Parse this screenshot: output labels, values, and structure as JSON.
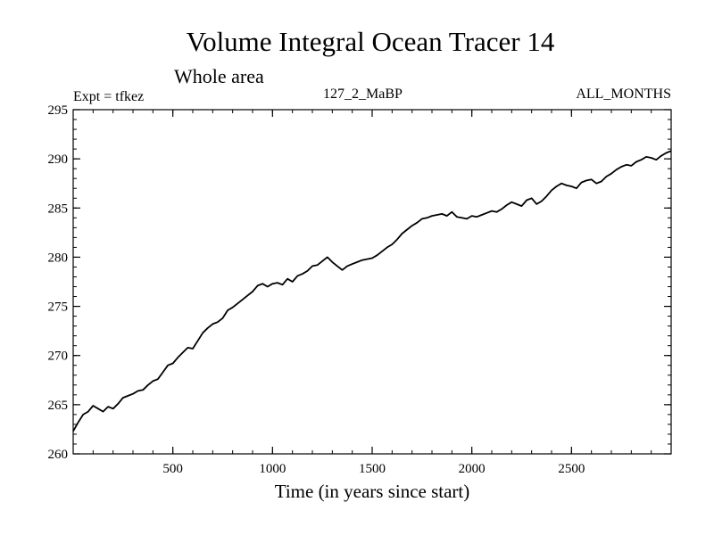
{
  "chart_data": {
    "type": "line",
    "title": "Volume Integral Ocean Tracer 14",
    "subtitle": "Whole area",
    "annotations": {
      "left": "Expt = tfkez",
      "center": "127_2_MaBP",
      "right": "ALL_MONTHS"
    },
    "xlabel": "Time (in years since start)",
    "ylabel": "",
    "xlim": [
      0,
      3000
    ],
    "ylim": [
      260,
      295
    ],
    "x_ticks": [
      500,
      1000,
      1500,
      2000,
      2500
    ],
    "y_ticks": [
      260,
      265,
      270,
      275,
      280,
      285,
      290,
      295
    ],
    "grid": false,
    "line_color": "#000000",
    "series": [
      {
        "x": [
          0,
          25,
          50,
          75,
          100,
          125,
          150,
          175,
          200,
          225,
          250,
          275,
          300,
          325,
          350,
          375,
          400,
          425,
          450,
          475,
          500,
          525,
          550,
          575,
          600,
          625,
          650,
          675,
          700,
          725,
          750,
          775,
          800,
          825,
          850,
          875,
          900,
          925,
          950,
          975,
          1000,
          1025,
          1050,
          1075,
          1100,
          1125,
          1150,
          1175,
          1200,
          1225,
          1250,
          1275,
          1300,
          1325,
          1350,
          1375,
          1400,
          1425,
          1450,
          1475,
          1500,
          1525,
          1550,
          1575,
          1600,
          1625,
          1650,
          1675,
          1700,
          1725,
          1750,
          1775,
          1800,
          1825,
          1850,
          1875,
          1900,
          1925,
          1950,
          1975,
          2000,
          2025,
          2050,
          2075,
          2100,
          2125,
          2150,
          2175,
          2200,
          2225,
          2250,
          2275,
          2300,
          2325,
          2350,
          2375,
          2400,
          2425,
          2450,
          2475,
          2500,
          2525,
          2550,
          2575,
          2600,
          2625,
          2650,
          2675,
          2700,
          2725,
          2750,
          2775,
          2800,
          2825,
          2850,
          2875,
          2900,
          2925,
          2950,
          2975,
          3000
        ],
        "y": [
          262.3,
          263.2,
          264.0,
          264.3,
          264.9,
          264.6,
          264.3,
          264.8,
          264.6,
          265.1,
          265.7,
          265.9,
          266.1,
          266.4,
          266.5,
          267.0,
          267.4,
          267.6,
          268.3,
          269.0,
          269.2,
          269.8,
          270.3,
          270.8,
          270.7,
          271.5,
          272.3,
          272.8,
          273.2,
          273.4,
          273.8,
          274.6,
          274.9,
          275.3,
          275.7,
          276.1,
          276.5,
          277.1,
          277.3,
          277.0,
          277.3,
          277.4,
          277.2,
          277.8,
          277.5,
          278.1,
          278.3,
          278.6,
          279.1,
          279.2,
          279.6,
          280.0,
          279.5,
          279.1,
          278.7,
          279.1,
          279.3,
          279.5,
          279.7,
          279.8,
          279.9,
          280.2,
          280.6,
          281.0,
          281.3,
          281.8,
          282.4,
          282.8,
          283.2,
          283.5,
          283.9,
          284.0,
          284.2,
          284.3,
          284.4,
          284.2,
          284.6,
          284.1,
          284.0,
          283.9,
          284.2,
          284.1,
          284.3,
          284.5,
          284.7,
          284.6,
          284.9,
          285.3,
          285.6,
          285.4,
          285.2,
          285.8,
          286.0,
          285.4,
          285.7,
          286.2,
          286.8,
          287.2,
          287.5,
          287.3,
          287.2,
          287.0,
          287.6,
          287.8,
          287.9,
          287.5,
          287.7,
          288.2,
          288.5,
          288.9,
          289.2,
          289.4,
          289.3,
          289.7,
          289.9,
          290.2,
          290.1,
          289.9,
          290.3,
          290.6,
          290.8
        ]
      }
    ]
  }
}
